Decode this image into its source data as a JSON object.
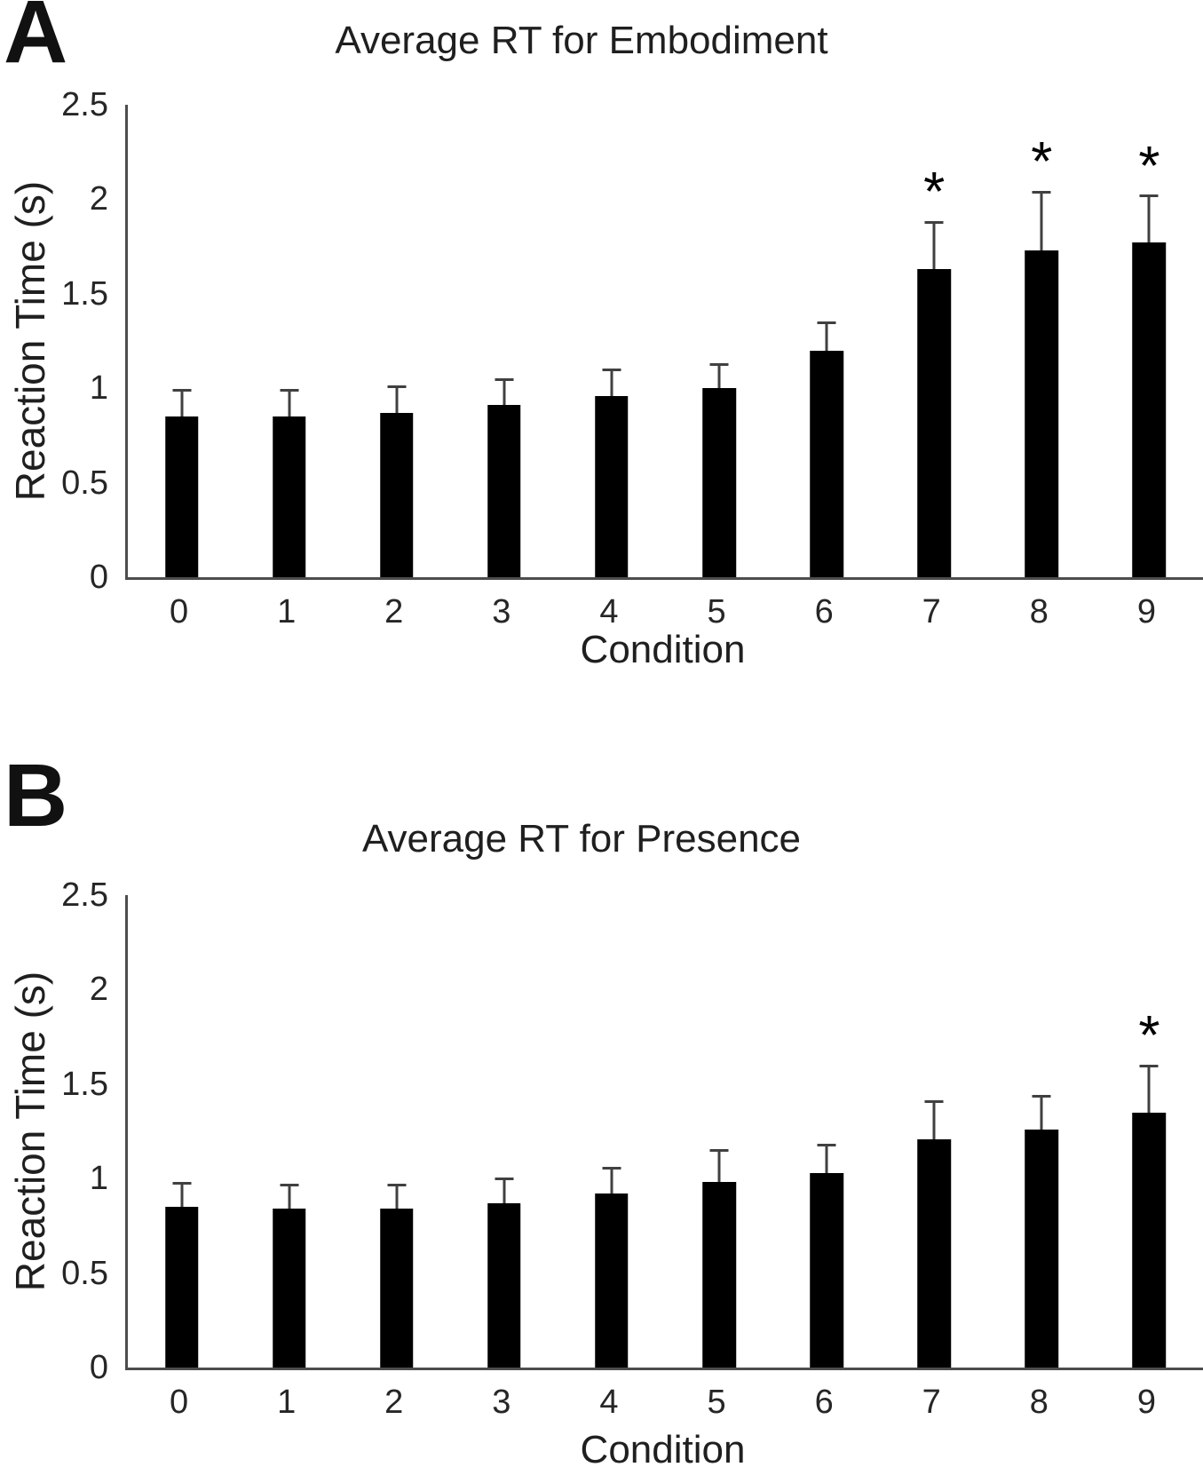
{
  "figure": {
    "background": "#ffffff",
    "bar_color": "#000000",
    "error_bar_color": "#404040",
    "axis_color": "#4d4d4d",
    "significance_marker": "*"
  },
  "chart_data": [
    {
      "type": "bar",
      "panel_label": "A",
      "title": "Average RT for Embodiment",
      "xlabel": "Condition",
      "ylabel": "Reaction Time (s)",
      "categories": [
        "0",
        "1",
        "2",
        "3",
        "4",
        "5",
        "6",
        "7",
        "8",
        "9"
      ],
      "values": [
        0.85,
        0.85,
        0.87,
        0.91,
        0.96,
        1.0,
        1.2,
        1.63,
        1.73,
        1.77
      ],
      "errors": [
        0.13,
        0.13,
        0.13,
        0.13,
        0.13,
        0.12,
        0.14,
        0.24,
        0.3,
        0.24
      ],
      "significant_indices": [
        7,
        8,
        9
      ],
      "ylim": [
        0,
        2.5
      ],
      "yticks": [
        0,
        0.5,
        1,
        1.5,
        2,
        2.5
      ],
      "ytick_labels": [
        "0",
        "0.5",
        "1",
        "1.5",
        "2",
        "2.5"
      ],
      "grid": false,
      "legend": "none"
    },
    {
      "type": "bar",
      "panel_label": "B",
      "title": "Average RT for Presence",
      "xlabel": "Condition",
      "ylabel": "Reaction Time (s)",
      "categories": [
        "0",
        "1",
        "2",
        "3",
        "4",
        "5",
        "6",
        "7",
        "8",
        "9"
      ],
      "values": [
        0.85,
        0.84,
        0.84,
        0.87,
        0.92,
        0.98,
        1.03,
        1.21,
        1.26,
        1.35
      ],
      "errors": [
        0.12,
        0.12,
        0.12,
        0.12,
        0.13,
        0.16,
        0.14,
        0.19,
        0.17,
        0.24
      ],
      "significant_indices": [
        9
      ],
      "ylim": [
        0,
        2.5
      ],
      "yticks": [
        0,
        0.5,
        1,
        1.5,
        2,
        2.5
      ],
      "ytick_labels": [
        "0",
        "0.5",
        "1",
        "1.5",
        "2",
        "2.5"
      ],
      "grid": false,
      "legend": "none"
    }
  ]
}
